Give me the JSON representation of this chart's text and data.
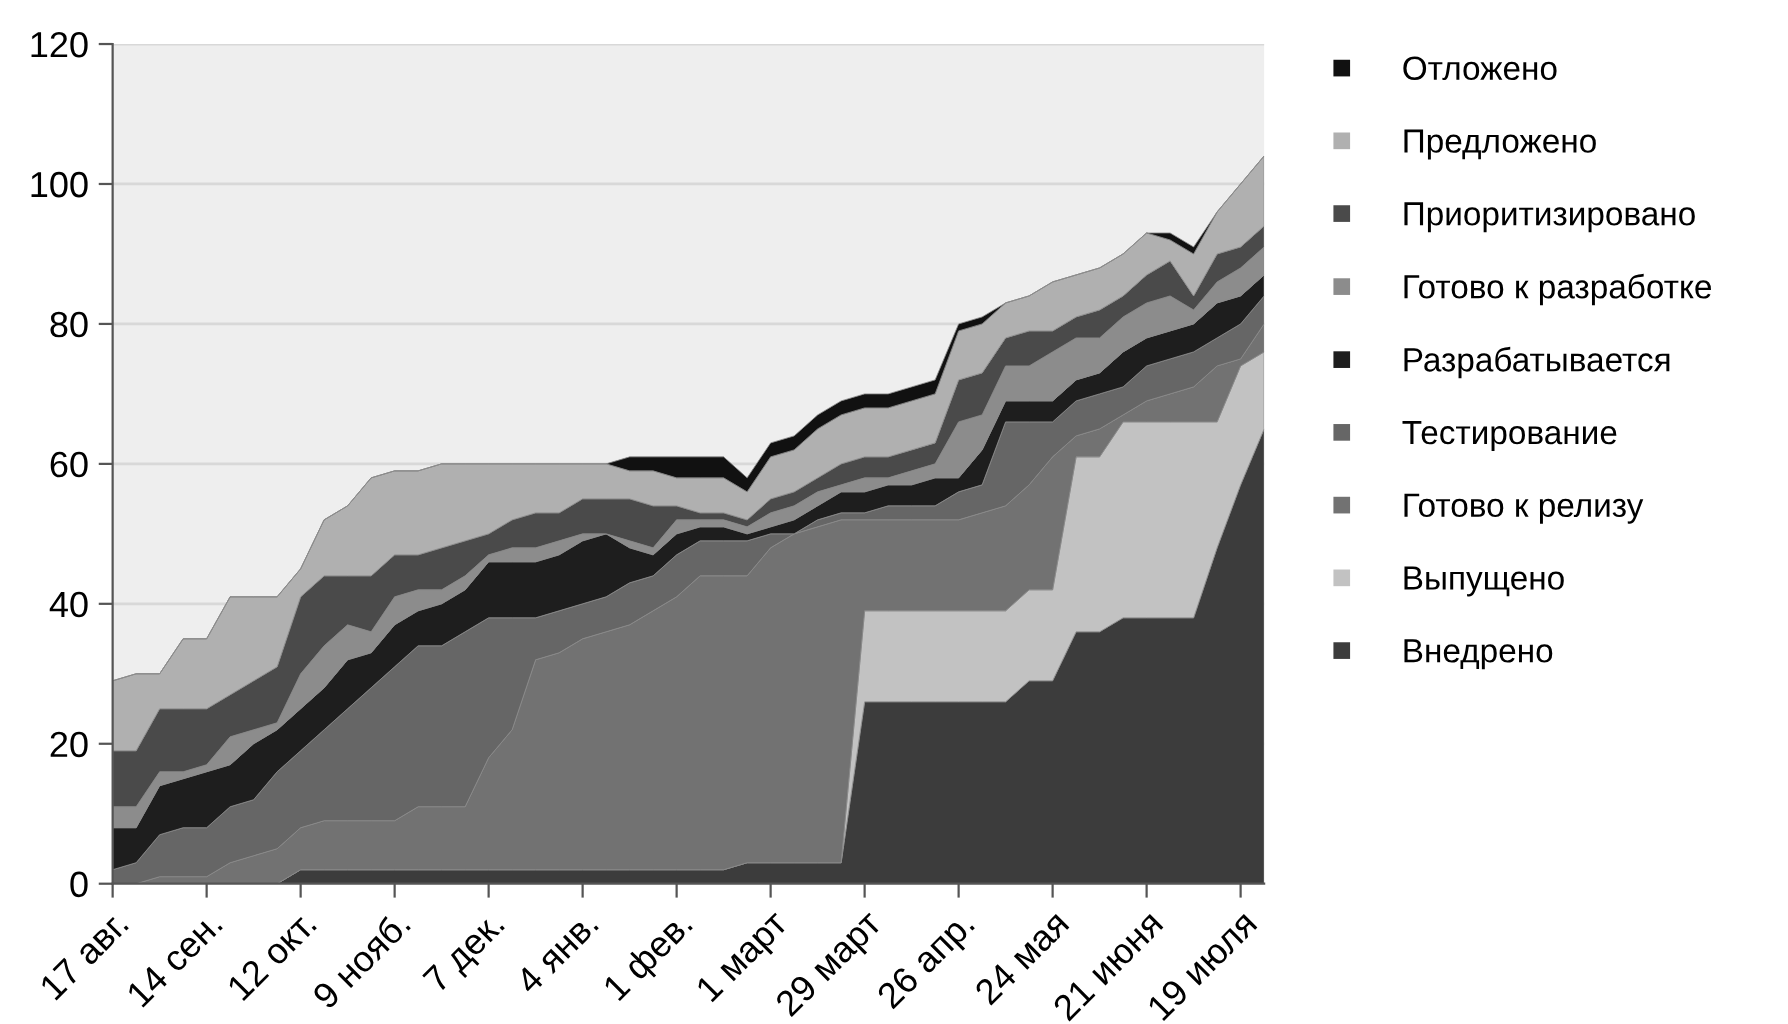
{
  "chart_data": {
    "type": "area",
    "stacked": true,
    "categories": [
      "17 авг.",
      null,
      null,
      null,
      "14 сен.",
      null,
      null,
      null,
      "12 окт.",
      null,
      null,
      null,
      "9 нояб.",
      null,
      null,
      null,
      "7 дек.",
      null,
      null,
      null,
      "4 янв.",
      null,
      null,
      null,
      "1 фев.",
      null,
      null,
      null,
      "1 март",
      null,
      null,
      null,
      "29 март",
      null,
      null,
      null,
      "26 апр.",
      null,
      null,
      null,
      "24 мая",
      null,
      null,
      null,
      "21 июня",
      null,
      null,
      null,
      "19 июля",
      null
    ],
    "series": [
      {
        "name": "Внедрено",
        "color": "#3c3c3c",
        "values": [
          0,
          0,
          0,
          0,
          0,
          0,
          0,
          0,
          2,
          2,
          2,
          2,
          2,
          2,
          2,
          2,
          2,
          2,
          2,
          2,
          2,
          2,
          2,
          2,
          2,
          2,
          2,
          3,
          3,
          3,
          3,
          3,
          26,
          26,
          26,
          26,
          26,
          26,
          26,
          29,
          29,
          36,
          36,
          38,
          38,
          38,
          38,
          48,
          57,
          65
        ]
      },
      {
        "name": "Выпущено",
        "color": "#c2c2c2",
        "values": [
          0,
          0,
          0,
          0,
          0,
          0,
          0,
          0,
          0,
          0,
          0,
          0,
          0,
          0,
          0,
          0,
          0,
          0,
          0,
          0,
          0,
          0,
          0,
          0,
          0,
          0,
          0,
          0,
          0,
          0,
          0,
          0,
          13,
          13,
          13,
          13,
          13,
          13,
          13,
          13,
          13,
          25,
          25,
          28,
          28,
          28,
          28,
          18,
          17,
          11
        ]
      },
      {
        "name": "Готово к релизу",
        "color": "#727272",
        "values": [
          0,
          0,
          1,
          1,
          1,
          3,
          4,
          5,
          6,
          7,
          7,
          7,
          7,
          9,
          9,
          9,
          16,
          20,
          30,
          31,
          33,
          34,
          35,
          37,
          39,
          42,
          42,
          41,
          45,
          47,
          48,
          49,
          13,
          13,
          13,
          13,
          13,
          14,
          15,
          15,
          19,
          3,
          4,
          1,
          3,
          4,
          5,
          8,
          1,
          4
        ]
      },
      {
        "name": "Тестирование",
        "color": "#666666",
        "values": [
          2,
          3,
          6,
          7,
          7,
          8,
          8,
          11,
          11,
          13,
          16,
          19,
          22,
          23,
          23,
          25,
          20,
          16,
          6,
          6,
          5,
          5,
          6,
          5,
          6,
          5,
          5,
          5,
          2,
          0,
          1,
          1,
          1,
          2,
          2,
          2,
          4,
          4,
          12,
          9,
          5,
          5,
          5,
          4,
          5,
          5,
          5,
          4,
          5,
          4
        ]
      },
      {
        "name": "Разрабатывается",
        "color": "#1e1e1e",
        "values": [
          6,
          5,
          7,
          7,
          8,
          6,
          8,
          6,
          6,
          6,
          7,
          5,
          6,
          5,
          6,
          6,
          8,
          8,
          8,
          8,
          9,
          9,
          5,
          3,
          3,
          2,
          2,
          1,
          1,
          2,
          2,
          3,
          3,
          3,
          3,
          4,
          2,
          5,
          3,
          3,
          3,
          3,
          3,
          5,
          4,
          4,
          4,
          5,
          4,
          3
        ]
      },
      {
        "name": "Готово к разработке",
        "color": "#8c8c8c",
        "values": [
          3,
          3,
          2,
          1,
          1,
          4,
          2,
          1,
          5,
          6,
          5,
          3,
          4,
          3,
          2,
          2,
          1,
          2,
          2,
          2,
          1,
          0,
          1,
          1,
          2,
          1,
          1,
          1,
          2,
          2,
          2,
          1,
          2,
          1,
          2,
          2,
          8,
          5,
          5,
          5,
          7,
          6,
          5,
          5,
          5,
          5,
          2,
          3,
          4,
          4
        ]
      },
      {
        "name": "Приоритизировано",
        "color": "#4a4a4a",
        "values": [
          8,
          8,
          9,
          9,
          8,
          6,
          7,
          8,
          11,
          10,
          7,
          8,
          6,
          5,
          6,
          5,
          3,
          4,
          5,
          4,
          5,
          5,
          6,
          6,
          2,
          1,
          1,
          1,
          2,
          2,
          2,
          3,
          3,
          3,
          3,
          3,
          6,
          6,
          4,
          5,
          3,
          3,
          4,
          3,
          4,
          5,
          2,
          4,
          3,
          3
        ]
      },
      {
        "name": "Предложено",
        "color": "#b0b0b0",
        "values": [
          10,
          11,
          5,
          10,
          10,
          14,
          12,
          10,
          4,
          8,
          10,
          14,
          12,
          12,
          12,
          11,
          10,
          8,
          7,
          7,
          5,
          5,
          4,
          5,
          4,
          5,
          5,
          4,
          6,
          6,
          7,
          7,
          7,
          7,
          7,
          7,
          7,
          7,
          5,
          5,
          7,
          6,
          6,
          6,
          6,
          3,
          6,
          6,
          9,
          10
        ]
      },
      {
        "name": "Отложено",
        "color": "#111111",
        "values": [
          0,
          0,
          0,
          0,
          0,
          0,
          0,
          0,
          0,
          0,
          0,
          0,
          0,
          0,
          0,
          0,
          0,
          0,
          0,
          0,
          0,
          0,
          2,
          2,
          3,
          3,
          3,
          2,
          2,
          2,
          2,
          2,
          2,
          2,
          2,
          2,
          1,
          1,
          0,
          0,
          0,
          0,
          0,
          0,
          0,
          1,
          1,
          0,
          0,
          0
        ]
      }
    ],
    "ylim": [
      0,
      120
    ],
    "yticks": [
      0,
      20,
      40,
      60,
      80,
      100,
      120
    ],
    "grid": "y",
    "legend": "right"
  }
}
